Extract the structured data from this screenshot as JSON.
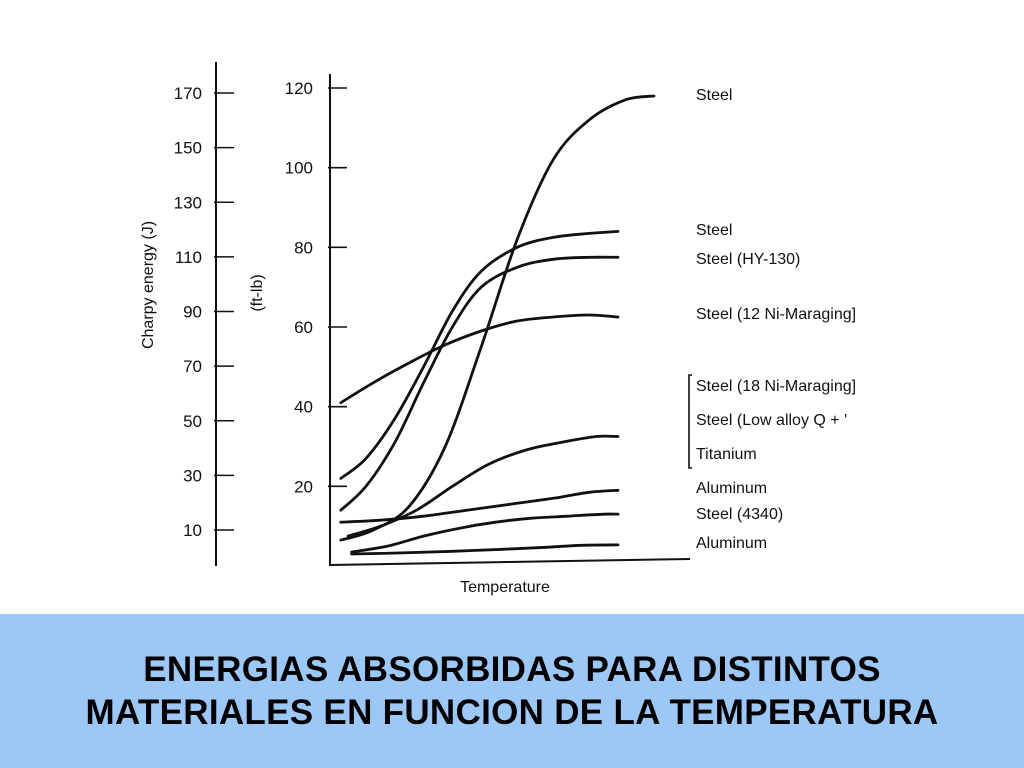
{
  "chart_data": {
    "type": "line",
    "title": "ENERGIAS ABSORBIDAS PARA DISTINTOS MATERIALES EN FUNCION DE LA TEMPERATURA",
    "xlabel": "Temperature",
    "ylabel_left": "Charpy energy (J)",
    "ylabel_right": "(ft-lb)",
    "y_ticks_j": [
      "170",
      "150",
      "130",
      "110",
      "90",
      "70",
      "50",
      "30",
      "10"
    ],
    "y_ticks_ftlb": [
      "120",
      "100",
      "80",
      "60",
      "40",
      "20"
    ],
    "ylim_ftlb": [
      0,
      120
    ],
    "xlim": [
      0,
      1
    ],
    "grid": false,
    "legend": "labels at right end of each curve",
    "labels": {
      "steel_top": "Steel",
      "steel_2": "Steel",
      "hy130": "Steel (HY-130)",
      "ni12": "Steel (12 Ni-Maraging]",
      "ni18": "Steel (18 Ni-Maraging]",
      "low_alloy": "Steel (Low alloy Q + '",
      "titanium": "Titanium",
      "aluminum_1": "Aluminum",
      "steel_4340": "Steel (4340)",
      "aluminum_2": "Aluminum"
    },
    "series": [
      {
        "name": "Steel",
        "points": [
          [
            0.03,
            6.5
          ],
          [
            0.12,
            9
          ],
          [
            0.22,
            15
          ],
          [
            0.32,
            30
          ],
          [
            0.42,
            55
          ],
          [
            0.52,
            82
          ],
          [
            0.62,
            102
          ],
          [
            0.72,
            112
          ],
          [
            0.82,
            117
          ],
          [
            0.9,
            118
          ]
        ]
      },
      {
        "name": "Steel",
        "points": [
          [
            0.03,
            22
          ],
          [
            0.1,
            27
          ],
          [
            0.18,
            37
          ],
          [
            0.26,
            50
          ],
          [
            0.34,
            64
          ],
          [
            0.42,
            74
          ],
          [
            0.52,
            80
          ],
          [
            0.62,
            82.5
          ],
          [
            0.72,
            83.5
          ],
          [
            0.8,
            84
          ]
        ]
      },
      {
        "name": "Steel (HY-130)",
        "points": [
          [
            0.03,
            14
          ],
          [
            0.1,
            20
          ],
          [
            0.18,
            31
          ],
          [
            0.26,
            46
          ],
          [
            0.34,
            60
          ],
          [
            0.42,
            70
          ],
          [
            0.52,
            75
          ],
          [
            0.62,
            77
          ],
          [
            0.72,
            77.5
          ],
          [
            0.8,
            77.5
          ]
        ]
      },
      {
        "name": "Steel (12 Ni-Maraging]",
        "points": [
          [
            0.03,
            41
          ],
          [
            0.12,
            46
          ],
          [
            0.22,
            51
          ],
          [
            0.32,
            55.5
          ],
          [
            0.42,
            59
          ],
          [
            0.52,
            61.5
          ],
          [
            0.62,
            62.5
          ],
          [
            0.72,
            63
          ],
          [
            0.8,
            62.5
          ]
        ]
      },
      {
        "name": "Titanium",
        "points": [
          [
            0.05,
            7.5
          ],
          [
            0.14,
            10
          ],
          [
            0.24,
            14
          ],
          [
            0.34,
            20
          ],
          [
            0.44,
            25.5
          ],
          [
            0.54,
            29
          ],
          [
            0.64,
            31
          ],
          [
            0.74,
            32.5
          ],
          [
            0.8,
            32.5
          ]
        ]
      },
      {
        "name": "Aluminum",
        "points": [
          [
            0.03,
            11
          ],
          [
            0.14,
            11.5
          ],
          [
            0.26,
            12.5
          ],
          [
            0.38,
            14
          ],
          [
            0.5,
            15.5
          ],
          [
            0.62,
            17
          ],
          [
            0.72,
            18.5
          ],
          [
            0.8,
            19
          ]
        ]
      },
      {
        "name": "Steel (4340)",
        "points": [
          [
            0.06,
            3.5
          ],
          [
            0.16,
            5
          ],
          [
            0.26,
            7.5
          ],
          [
            0.36,
            9.5
          ],
          [
            0.46,
            11
          ],
          [
            0.56,
            12
          ],
          [
            0.66,
            12.5
          ],
          [
            0.76,
            13
          ],
          [
            0.8,
            13
          ]
        ]
      },
      {
        "name": "Aluminum",
        "points": [
          [
            0.06,
            3
          ],
          [
            0.2,
            3.3
          ],
          [
            0.34,
            3.7
          ],
          [
            0.48,
            4.2
          ],
          [
            0.6,
            4.7
          ],
          [
            0.7,
            5.2
          ],
          [
            0.8,
            5.3
          ]
        ]
      }
    ]
  }
}
